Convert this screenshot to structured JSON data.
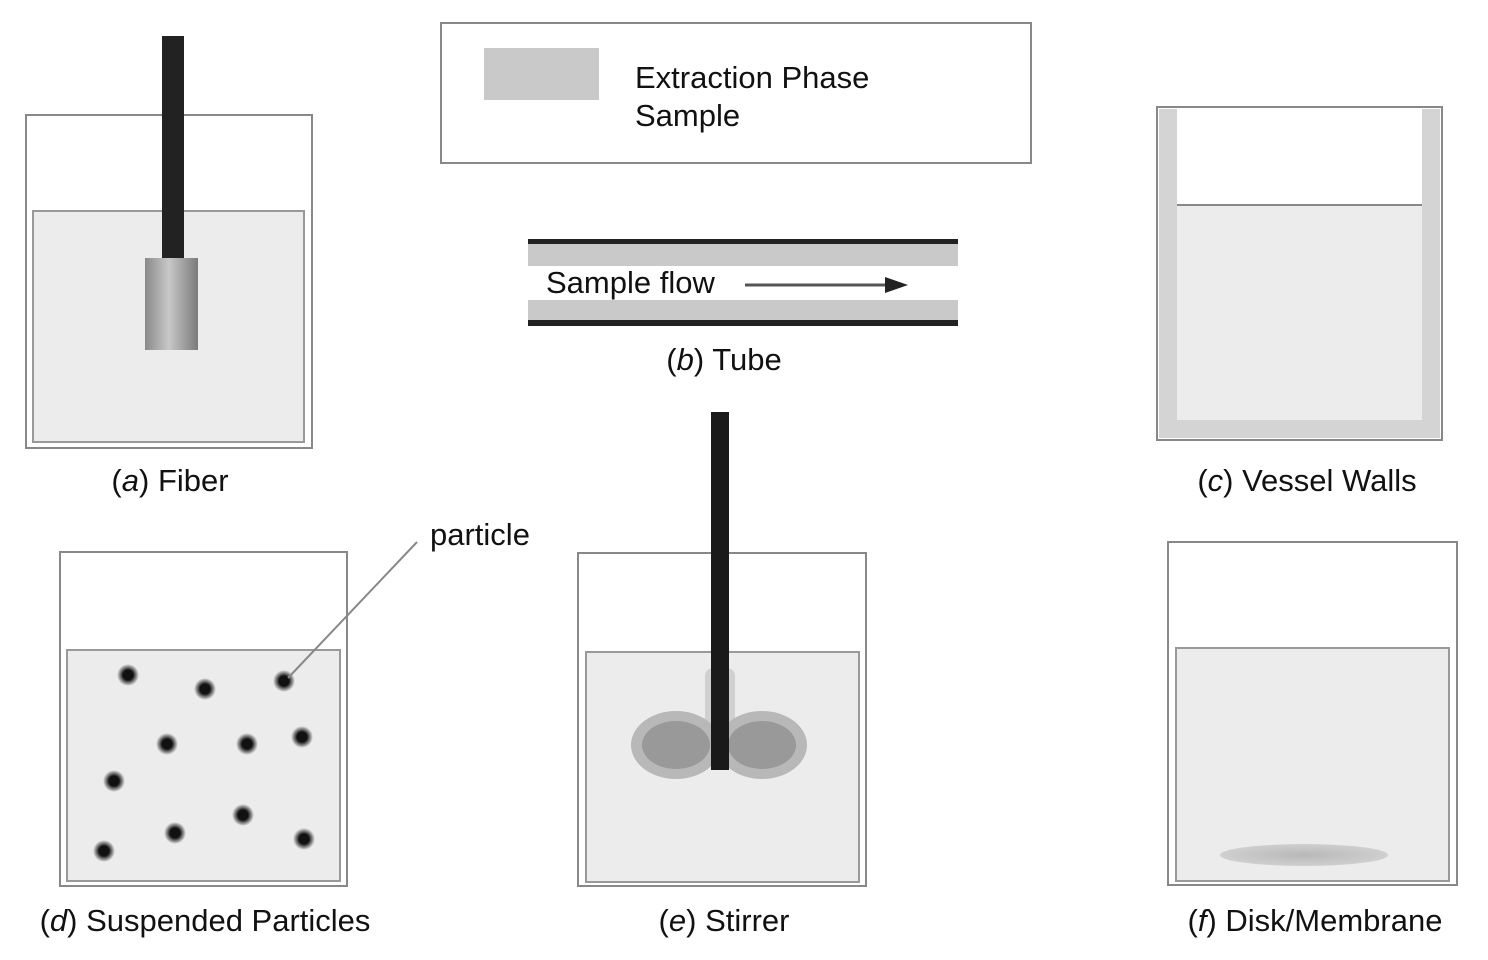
{
  "legend": {
    "extraction_phase": "Extraction Phase",
    "sample": "Sample"
  },
  "panels": {
    "a": {
      "letter": "a",
      "name": "Fiber"
    },
    "b": {
      "letter": "b",
      "name": "Tube",
      "flow_label": "Sample flow"
    },
    "c": {
      "letter": "c",
      "name": "Vessel Walls"
    },
    "d": {
      "letter": "d",
      "name": "Suspended Particles",
      "callout": "particle"
    },
    "e": {
      "letter": "e",
      "name": "Stirrer"
    },
    "f": {
      "letter": "f",
      "name": "Disk/Membrane"
    }
  },
  "colors": {
    "extraction_phase": "#c9c9c9",
    "sample": "#ececec",
    "outline": "#777777",
    "dark": "#222222"
  }
}
